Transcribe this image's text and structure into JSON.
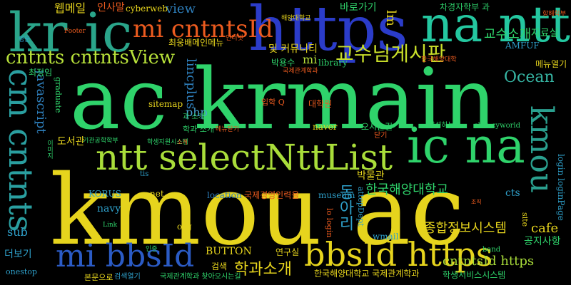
{
  "words": [
    {
      "text": "ac krmain",
      "color": "#2fd36b"
    },
    {
      "text": "kmou ac",
      "color": "#e6d41d"
    },
    {
      "text": "https",
      "color": "#2b3cc9"
    },
    {
      "text": "kr ic",
      "color": "#2aa58a"
    },
    {
      "text": "na ntt",
      "color": "#24c7a0"
    },
    {
      "text": "ntt selectNttList",
      "color": "#a9dd3a"
    },
    {
      "text": "ic na",
      "color": "#2fd36b"
    },
    {
      "text": "cm cntnts",
      "color": "#2a9fa0"
    },
    {
      "text": "mi bbsId",
      "color": "#2b5bc5"
    },
    {
      "text": "bbsId https",
      "color": "#e6d41d"
    },
    {
      "text": "mi cntntsId",
      "color": "#ec5b1f"
    },
    {
      "text": "cntnts cntntsView",
      "color": "#b7e13a"
    },
    {
      "text": "교수님게시판",
      "color": "#c9df2a"
    },
    {
      "text": "kmou",
      "color": "#2a9f8e"
    },
    {
      "text": "Ocean",
      "color": "#37b7a5"
    },
    {
      "text": "종합정보시스템",
      "color": "#e6d41d"
    },
    {
      "text": "학과소개",
      "color": "#e6d41d"
    },
    {
      "text": "한국해양대학교",
      "color": "#2fd36b"
    },
    {
      "text": "cntntsId https",
      "color": "#a9dd3a"
    },
    {
      "text": "javascript",
      "color": "#2e7fbc"
    },
    {
      "text": "동아리",
      "color": "#2e9fc9"
    },
    {
      "text": "view",
      "color": "#2e7fbc"
    },
    {
      "text": "교수소개",
      "color": "#2fd36b"
    },
    {
      "text": "웹메일",
      "color": "#e6d41d"
    },
    {
      "text": "인사말",
      "color": "#ec5b1f"
    },
    {
      "text": "cyberweb",
      "color": "#e6d41d"
    },
    {
      "text": "바로가기",
      "color": "#2fd36b"
    },
    {
      "text": "차경자학부 과 ",
      "color": "#2fd36b"
    },
    {
      "text": "자료실",
      "color": "#2fd36b"
    },
    {
      "text": "lm",
      "color": "#e6d41d"
    },
    {
      "text": "AMFUF",
      "color": "#2e9fc9"
    },
    {
      "text": "mi",
      "color": "#b7e13a"
    },
    {
      "text": "php",
      "color": "#4aa1d0"
    },
    {
      "text": "lincplus",
      "color": "#2e7fbc"
    },
    {
      "text": "메뉴열기",
      "color": "#e6d41d"
    },
    {
      "text": "cafe",
      "color": "#e6d41d"
    },
    {
      "text": "공지사항",
      "color": "#2fd36b"
    },
    {
      "text": "BUTTON",
      "color": "#e6d41d"
    },
    {
      "text": "sub",
      "color": "#2e9fc9"
    },
    {
      "text": "더보기",
      "color": "#2e9fc9"
    },
    {
      "text": "검색",
      "color": "#e6d41d"
    },
    {
      "text": "naver",
      "color": "#e6d41d"
    },
    {
      "text": "대학원",
      "color": "#ec5b1f"
    },
    {
      "text": "및 커뮤니티",
      "color": "#e6d41d"
    },
    {
      "text": "library",
      "color": "#2fd36b"
    },
    {
      "text": "박용수",
      "color": "#2fd36b"
    },
    {
      "text": "최정임",
      "color": "#2fd36b"
    },
    {
      "text": "최웅배메인메뉴",
      "color": "#e6d41d"
    },
    {
      "text": "location",
      "color": "#2e7fbc"
    },
    {
      "text": "국제경영인력을",
      "color": "#ec5b1f"
    },
    {
      "text": "museum",
      "color": "#2e9fc9"
    },
    {
      "text": "KORUS",
      "color": "#2e9fc9"
    },
    {
      "text": "net",
      "color": "#e6d41d"
    },
    {
      "text": "navy",
      "color": "#2e9fc9"
    },
    {
      "text": "org",
      "color": "#e6d41d"
    },
    {
      "text": "wmail",
      "color": "#2e9fc9"
    },
    {
      "text": "cts",
      "color": "#2e9fc9"
    },
    {
      "text": "sitemap",
      "color": "#e6d41d"
    },
    {
      "text": "박물관",
      "color": "#e6d41d"
    },
    {
      "text": "오시는길",
      "color": "#2fd36b"
    },
    {
      "text": "도서관",
      "color": "#e6d41d"
    },
    {
      "text": "학생서비스시스템",
      "color": "#2fd36b"
    },
    {
      "text": "한국해양대학교 국제관계학과",
      "color": "#e6d41d"
    },
    {
      "text": "국제관계학과 찾아오시는길",
      "color": "#2fd36b"
    },
    {
      "text": "연구실",
      "color": "#e6d41d"
    },
    {
      "text": "onestop",
      "color": "#2e9fc9"
    },
    {
      "text": "입학 Q",
      "color": "#ec5b1f"
    },
    {
      "text": "login loginPage",
      "color": "#2e9fc9"
    },
    {
      "text": "graduate",
      "color": "#2fd36b"
    },
    {
      "text": "lo login",
      "color": "#ec5b1f"
    },
    {
      "text": "attepDept",
      "color": "#2e9fc9"
    },
    {
      "text": "학과 소개",
      "color": "#2fd36b"
    },
    {
      "text": "Footer",
      "color": "#ec5b1f"
    },
    {
      "text": "club cyworld",
      "color": "#2fd36b"
    },
    {
      "text": "band",
      "color": "#2fd36b"
    },
    {
      "text": "Link",
      "color": "#2fd36b"
    },
    {
      "text": "본문으로",
      "color": "#e6d41d"
    },
    {
      "text": "검색열기",
      "color": "#2e9fc9"
    },
    {
      "text": "tis",
      "color": "#2e9fc9"
    },
    {
      "text": "site",
      "color": "#e6d41d"
    },
    {
      "text": "양성하는",
      "color": "#2fd36b"
    },
    {
      "text": "과 소개",
      "color": "#2fd36b"
    },
    {
      "text": "해양대학교",
      "color": "#e6d41d"
    },
    {
      "text": "국제관계학과",
      "color": "#ec5b1f"
    },
    {
      "text": "메뉴닫기",
      "color": "#ec5b1f"
    },
    {
      "text": "인터넷",
      "color": "#ec5b1f"
    },
    {
      "text": "기관공학학부",
      "color": "#2fd36b"
    },
    {
      "text": "학생지원시스템",
      "color": "#2fd36b"
    },
    {
      "text": "닫기",
      "color": "#ec5b1f"
    },
    {
      "text": "한국해양대학",
      "color": "#ec5b1f"
    },
    {
      "text": "인증",
      "color": "#2fd36b"
    },
    {
      "text": "영문",
      "color": "#2e9fc9"
    },
    {
      "text": "항해학부",
      "color": "#ec5b1f"
    },
    {
      "text": "소개",
      "color": "#ec5b1f"
    },
    {
      "text": "조직",
      "color": "#ec5b1f"
    },
    {
      "text": "이미지",
      "color": "#2fd36b"
    }
  ]
}
